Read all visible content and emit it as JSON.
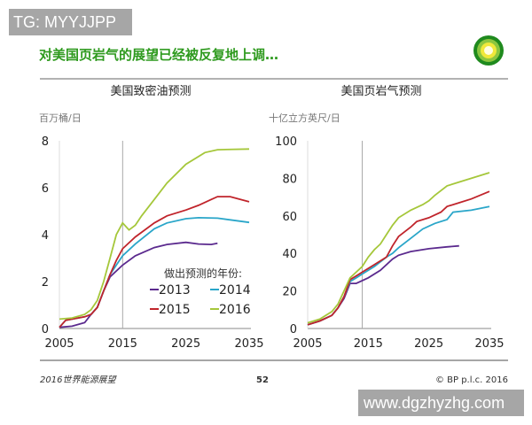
{
  "watermark_top": "TG: MYYJJPP",
  "watermark_bottom": "www.dgzhyzhg.com",
  "title": "对美国页岩气的展望已经被反复地上调…",
  "footer": {
    "left": "2016世界能源展望",
    "page": "52",
    "right": "© BP p.l.c. 2016"
  },
  "colors": {
    "title": "#2e9a1e",
    "2013": "#5b2a8e",
    "2014": "#2aa6c9",
    "2015": "#c0242b",
    "2016": "#a5c73a"
  },
  "legend_title": "做出预测的年份:",
  "chart_data": [
    {
      "type": "line",
      "title": "美国致密油预测",
      "ylabel": "百万桶/日",
      "xlim": [
        2005,
        2035
      ],
      "ylim": [
        0,
        8
      ],
      "xticks": [
        "2005",
        "2015",
        "2025",
        "2035"
      ],
      "yticks": [
        "0",
        "2",
        "4",
        "6",
        "8"
      ],
      "reference_line_x": 2015,
      "grid": false,
      "legend": "bottom-right",
      "series": [
        {
          "name": "2013",
          "x": [
            2005,
            2007,
            2009,
            2010,
            2011,
            2012,
            2013,
            2015,
            2017,
            2020,
            2022,
            2025,
            2027,
            2029,
            2030
          ],
          "y": [
            0.05,
            0.1,
            0.25,
            0.6,
            0.9,
            1.6,
            2.2,
            2.7,
            3.1,
            3.45,
            3.58,
            3.67,
            3.6,
            3.58,
            3.63
          ]
        },
        {
          "name": "2014",
          "x": [
            2005,
            2006,
            2009,
            2010,
            2011,
            2012,
            2013,
            2014,
            2015,
            2017,
            2020,
            2022,
            2025,
            2027,
            2030,
            2035
          ],
          "y": [
            0.05,
            0.35,
            0.5,
            0.6,
            0.9,
            1.6,
            2.3,
            2.7,
            3.1,
            3.6,
            4.25,
            4.5,
            4.68,
            4.72,
            4.7,
            4.52
          ]
        },
        {
          "name": "2015",
          "x": [
            2005,
            2006,
            2009,
            2010,
            2011,
            2012,
            2013,
            2014,
            2015,
            2017,
            2020,
            2022,
            2025,
            2027,
            2029,
            2030,
            2032,
            2035
          ],
          "y": [
            0.05,
            0.35,
            0.5,
            0.6,
            0.9,
            1.6,
            2.3,
            2.9,
            3.4,
            3.9,
            4.5,
            4.8,
            5.05,
            5.25,
            5.5,
            5.62,
            5.62,
            5.4
          ]
        },
        {
          "name": "2016",
          "x": [
            2005,
            2007,
            2009,
            2010,
            2011,
            2012,
            2013,
            2014,
            2015,
            2016,
            2017,
            2018,
            2020,
            2022,
            2025,
            2028,
            2030,
            2035
          ],
          "y": [
            0.4,
            0.45,
            0.6,
            0.8,
            1.2,
            2.0,
            3.0,
            4.0,
            4.5,
            4.2,
            4.4,
            4.8,
            5.5,
            6.2,
            7.0,
            7.5,
            7.62,
            7.65
          ]
        }
      ]
    },
    {
      "type": "line",
      "title": "美国页岩气预测",
      "ylabel": "十亿立方英尺/日",
      "xlim": [
        2005,
        2035
      ],
      "ylim": [
        0,
        100
      ],
      "xticks": [
        "2005",
        "2015",
        "2025",
        "2035"
      ],
      "yticks": [
        "0",
        "20",
        "40",
        "60",
        "80",
        "100"
      ],
      "reference_line_x": 2014,
      "grid": false,
      "series": [
        {
          "name": "2013",
          "x": [
            2005,
            2007,
            2009,
            2010,
            2011,
            2012,
            2013,
            2015,
            2017,
            2019,
            2020,
            2022,
            2025,
            2028,
            2030
          ],
          "y": [
            2,
            4,
            7,
            11,
            16,
            24,
            24,
            27,
            31,
            37,
            39,
            41,
            42.5,
            43.5,
            44
          ]
        },
        {
          "name": "2014",
          "x": [
            2005,
            2007,
            2009,
            2010,
            2011,
            2012,
            2013,
            2014,
            2016,
            2018,
            2019,
            2020,
            2022,
            2024,
            2026,
            2028,
            2029,
            2032,
            2035
          ],
          "y": [
            2,
            4,
            7,
            11,
            17,
            25,
            27,
            29,
            33,
            38,
            40,
            43,
            48,
            53,
            56,
            58,
            62,
            63,
            65
          ]
        },
        {
          "name": "2015",
          "x": [
            2005,
            2007,
            2009,
            2010,
            2011,
            2012,
            2013,
            2014,
            2016,
            2018,
            2019,
            2020,
            2022,
            2023,
            2025,
            2027,
            2028,
            2030,
            2032,
            2035
          ],
          "y": [
            2,
            4,
            7,
            11,
            17,
            26,
            28,
            30,
            34,
            38,
            44,
            49,
            54,
            57,
            59,
            62,
            65,
            67,
            69,
            73
          ]
        },
        {
          "name": "2016",
          "x": [
            2005,
            2007,
            2009,
            2010,
            2011,
            2012,
            2013,
            2014,
            2015,
            2016,
            2017,
            2018,
            2019,
            2020,
            2022,
            2024,
            2025,
            2026,
            2028,
            2030,
            2032,
            2035
          ],
          "y": [
            3,
            5,
            9,
            13,
            20,
            27,
            30,
            33,
            38,
            42,
            45,
            50,
            55,
            59,
            63,
            66,
            68,
            71,
            76,
            78,
            80,
            83
          ]
        }
      ]
    }
  ]
}
